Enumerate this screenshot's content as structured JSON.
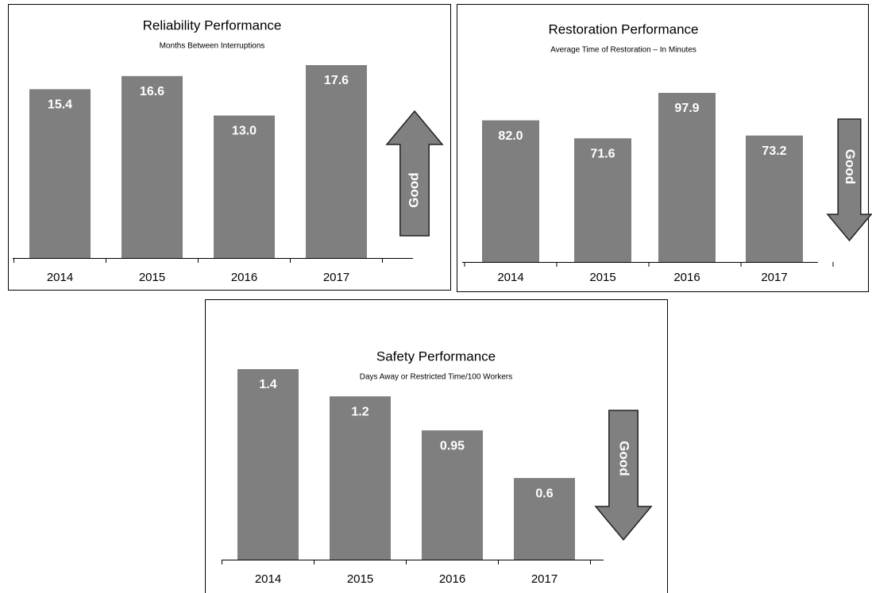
{
  "chart_data": [
    {
      "type": "bar",
      "title": "Reliability Performance",
      "subtitle": "Months Between Interruptions",
      "categories": [
        "2014",
        "2015",
        "2016",
        "2017"
      ],
      "values": [
        15.4,
        16.6,
        13,
        17.6
      ],
      "value_labels": [
        "15.4",
        "16.6",
        "13.0",
        "17.6"
      ],
      "color": "#7f7f7f",
      "annotation": "Good"
    },
    {
      "type": "bar",
      "title": "Restoration Performance",
      "subtitle": "Average Time of Restoration – In Minutes",
      "categories": [
        "2014",
        "2015",
        "2016",
        "2017"
      ],
      "values": [
        82,
        71.6,
        97.9,
        73.2
      ],
      "value_labels": [
        "82.0",
        "71.6",
        "97.9",
        "73.2"
      ],
      "color": "#7f7f7f",
      "annotation": "Good"
    },
    {
      "type": "bar",
      "title": "Safety Performance",
      "subtitle": "Days Away or Restricted Time/100 Workers",
      "categories": [
        "2014",
        "2015",
        "2016",
        "2017"
      ],
      "values": [
        1.4,
        1.2,
        0.95,
        0.6
      ],
      "value_labels": [
        "1.4",
        "1.2",
        "0.95",
        "0.6"
      ],
      "color": "#7f7f7f",
      "annotation": "Good"
    }
  ]
}
